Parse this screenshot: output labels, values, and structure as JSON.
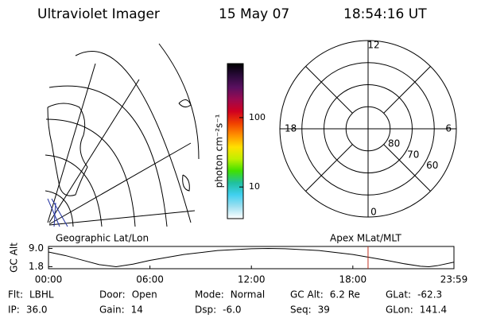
{
  "header": {
    "title": "Ultraviolet Imager",
    "date": "15 May 07",
    "time": "18:54:16 UT"
  },
  "colorbar": {
    "label": "photon cm⁻²s⁻¹",
    "log": true,
    "lim": [
      3.5,
      600
    ],
    "ticks": [
      10,
      100
    ],
    "colors": [
      "#000000",
      "#2a0a3a",
      "#5a1060",
      "#9a0a50",
      "#d00020",
      "#f04000",
      "#ff9000",
      "#ffe000",
      "#c0f000",
      "#40e000",
      "#20c0a0",
      "#40d0f0",
      "#a0e0f0",
      "#ffffff"
    ]
  },
  "map": {
    "caption": "Geographic Lat/Lon"
  },
  "polar": {
    "caption": "Apex MLat/MLT",
    "lat_lim": [
      90,
      50
    ],
    "lat_labels": [
      60,
      70,
      80
    ],
    "mlt_labels": [
      12,
      18,
      6,
      0
    ]
  },
  "chart_data": {
    "type": "line",
    "ylabel": "GC Alt",
    "color": "#000000",
    "x": [
      0,
      1,
      2,
      3,
      4,
      5,
      6,
      8,
      10,
      12,
      13,
      14,
      16,
      18,
      20,
      21,
      22,
      22.5,
      23,
      23.98
    ],
    "values": [
      7.6,
      6.2,
      4.4,
      2.6,
      1.8,
      2.8,
      4.3,
      6.6,
      8.2,
      8.9,
      9.0,
      8.9,
      8.2,
      6.6,
      4.3,
      3.0,
      2.0,
      1.8,
      2.2,
      3.6
    ],
    "xlim": [
      0,
      23.98
    ],
    "ylim": [
      1.0,
      9.8
    ],
    "xticks": [
      {
        "value": 0,
        "label": "00:00"
      },
      {
        "value": 6,
        "label": "06:00"
      },
      {
        "value": 12,
        "label": "12:00"
      },
      {
        "value": 18,
        "label": "18:00"
      },
      {
        "value": 23.98,
        "label": "23:59"
      }
    ],
    "yticks": [
      {
        "value": 9,
        "label": "9.0"
      },
      {
        "value": 1.8,
        "label": "1.8"
      }
    ],
    "marker": 18.9,
    "marker_color": "#c03020"
  },
  "footer": {
    "rows": [
      [
        {
          "label": "Flt:",
          "value": "LBHL"
        },
        {
          "label": "Door:",
          "value": "Open"
        },
        {
          "label": "Mode:",
          "value": "Normal"
        },
        {
          "label": "GC Alt:",
          "value": "6.2 Re"
        },
        {
          "label": "GLat:",
          "value": "-62.3"
        }
      ],
      [
        {
          "label": "IP:",
          "value": "36.0"
        },
        {
          "label": "Gain:",
          "value": "14"
        },
        {
          "label": "Dsp:",
          "value": "-6.0"
        },
        {
          "label": "Seq:",
          "value": "39"
        },
        {
          "label": "GLon:",
          "value": "141.4"
        }
      ]
    ]
  }
}
